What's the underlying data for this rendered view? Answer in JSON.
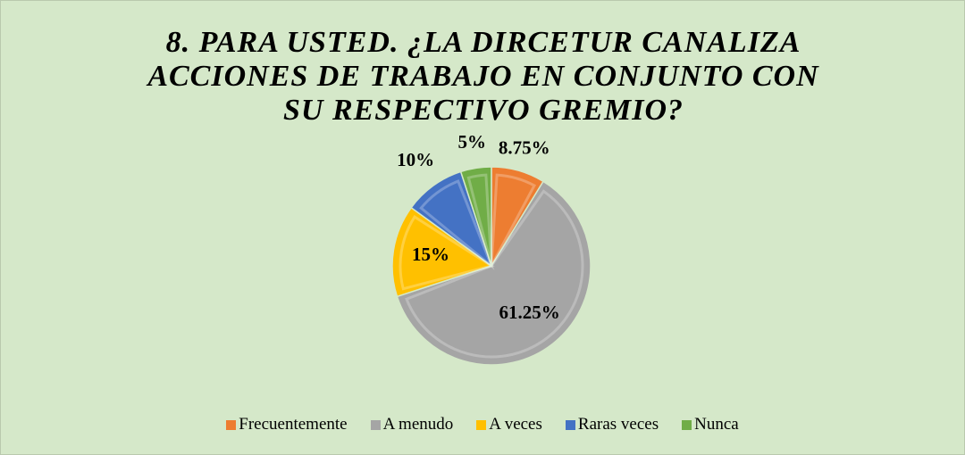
{
  "chart_data": {
    "type": "pie",
    "title": "8. PARA USTED. ¿LA DIRCETUR CANALIZA ACCIONES DE TRABAJO EN CONJUNTO CON SU RESPECTIVO GREMIO?",
    "categories": [
      "Frecuentemente",
      "A menudo",
      "A veces",
      "Raras veces",
      "Nunca"
    ],
    "values": [
      8.75,
      61.25,
      15,
      10,
      5
    ],
    "value_labels": [
      "8.75%",
      "61.25%",
      "15%",
      "10%",
      "5%"
    ],
    "colors": [
      "#ed7d31",
      "#a5a5a5",
      "#ffc000",
      "#4472c4",
      "#70ad47"
    ],
    "legend": "bottom"
  }
}
